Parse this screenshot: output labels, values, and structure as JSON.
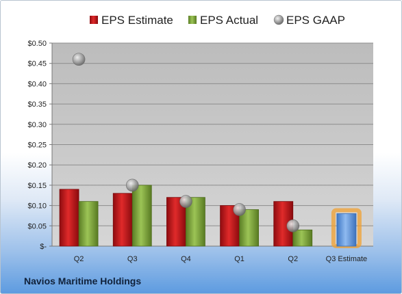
{
  "company": "Navios Maritime Holdings",
  "colors": {
    "estimate": "#c8141a",
    "actual": "#7da83a",
    "gaap": "#9a9a9a",
    "q3_estimate": "#5f97dd",
    "q3_estimate_glow": "#f0a030",
    "plot_bg": "#c6c6c6"
  },
  "chart_data": {
    "type": "bar",
    "categories": [
      "Q2",
      "Q3",
      "Q4",
      "Q1",
      "Q2",
      "Q3 Estimate"
    ],
    "series": [
      {
        "name": "EPS Estimate",
        "values": [
          0.14,
          0.13,
          0.12,
          0.1,
          0.11,
          null
        ]
      },
      {
        "name": "EPS Actual",
        "values": [
          0.11,
          0.15,
          0.12,
          0.09,
          0.04,
          0.08
        ]
      },
      {
        "name": "EPS GAAP",
        "values": [
          0.46,
          0.15,
          0.11,
          0.09,
          0.05,
          null
        ]
      }
    ],
    "y_ticks": [
      "$-",
      "$0.05",
      "$0.10",
      "$0.15",
      "$0.20",
      "$0.25",
      "$0.30",
      "$0.35",
      "$0.40",
      "$0.45",
      "$0.50"
    ],
    "ylim": [
      0,
      0.5
    ],
    "legend_position": "top",
    "grid": true
  }
}
